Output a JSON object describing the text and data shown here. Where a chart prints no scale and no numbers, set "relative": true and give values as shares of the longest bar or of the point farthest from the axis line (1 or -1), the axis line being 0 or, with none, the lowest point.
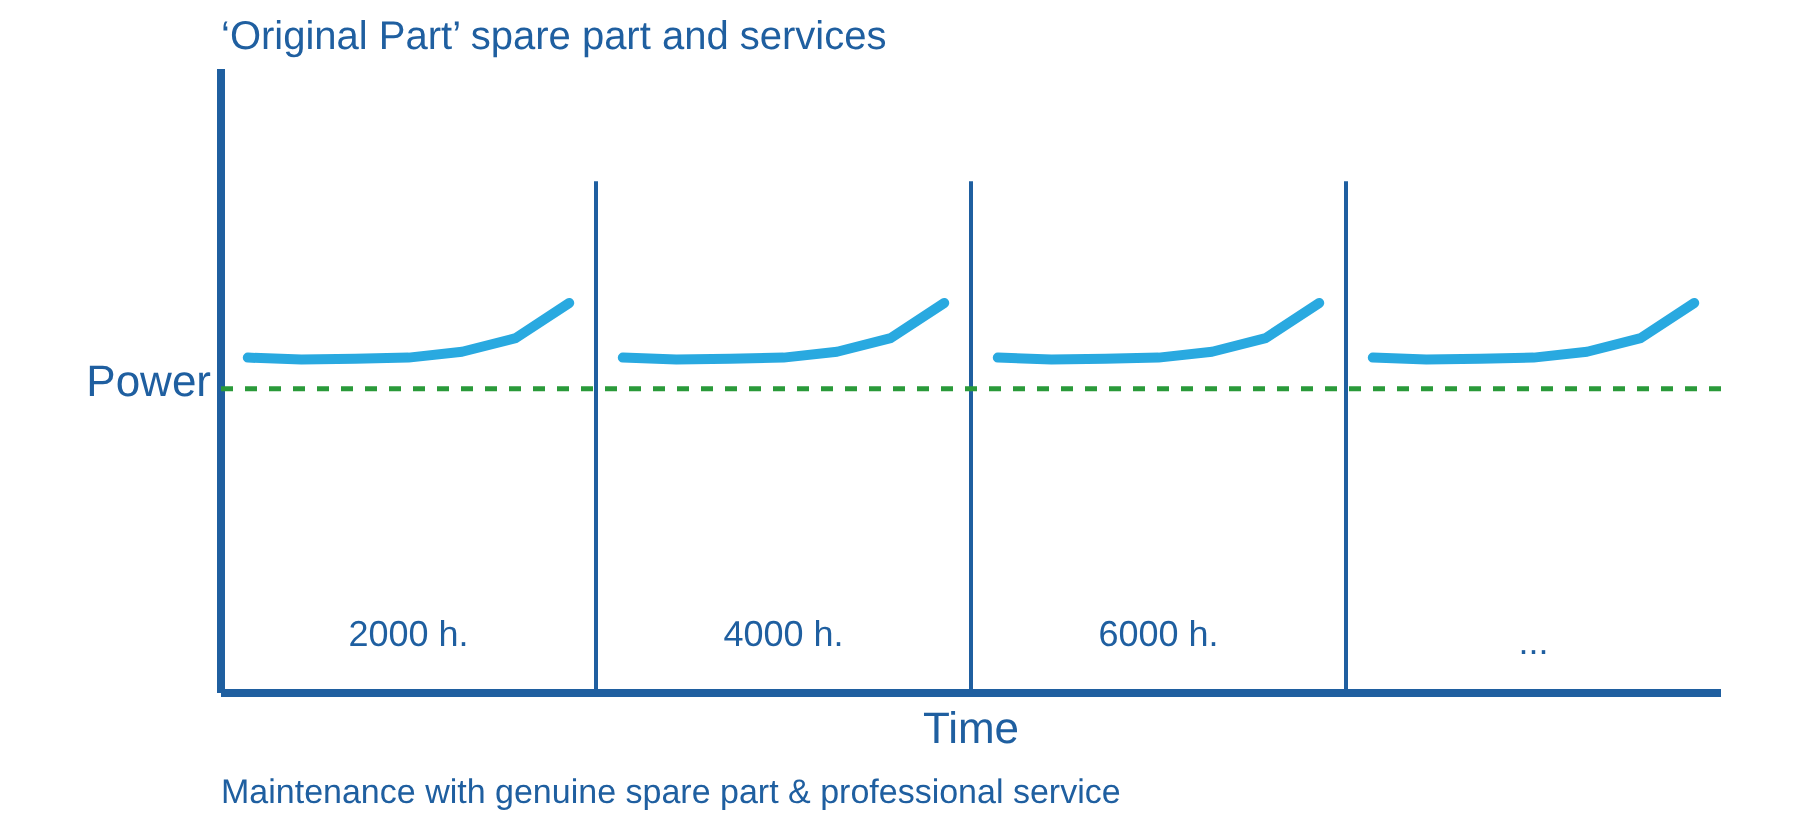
{
  "chart_data": {
    "type": "line",
    "relative": true,
    "title": "‘Original Part’ spare part and services",
    "xlabel": "Time",
    "ylabel": "Power",
    "categories": [
      null,
      null,
      null,
      null,
      null,
      null,
      null,
      null,
      null,
      null,
      null,
      null,
      null,
      null,
      null,
      null,
      null,
      null,
      null,
      null,
      null,
      null,
      null,
      null,
      null,
      null,
      null,
      null
    ],
    "series": [
      {
        "color": "#29a9e0",
        "values": [
          0.86,
          0.855,
          0.857,
          0.86,
          0.875,
          0.91,
          1.0,
          null,
          null,
          null,
          null,
          null,
          null,
          null,
          null,
          null,
          null,
          null,
          null,
          null,
          null,
          null,
          null,
          null,
          null,
          null,
          null,
          null
        ]
      },
      {
        "color": "#29a9e0",
        "values": [
          null,
          null,
          null,
          null,
          null,
          null,
          null,
          0.86,
          0.855,
          0.857,
          0.86,
          0.875,
          0.91,
          1.0,
          null,
          null,
          null,
          null,
          null,
          null,
          null,
          null,
          null,
          null,
          null,
          null,
          null,
          null
        ]
      },
      {
        "color": "#29a9e0",
        "values": [
          null,
          null,
          null,
          null,
          null,
          null,
          null,
          null,
          null,
          null,
          null,
          null,
          null,
          null,
          0.86,
          0.855,
          0.857,
          0.86,
          0.875,
          0.91,
          1.0,
          null,
          null,
          null,
          null,
          null,
          null,
          null
        ]
      },
      {
        "color": "#29a9e0",
        "values": [
          null,
          null,
          null,
          null,
          null,
          null,
          null,
          null,
          null,
          null,
          null,
          null,
          null,
          null,
          null,
          null,
          null,
          null,
          null,
          null,
          null,
          0.86,
          0.855,
          0.857,
          0.86,
          0.875,
          0.91,
          1.0
        ]
      }
    ],
    "ref_lines": [
      {
        "axis": "y",
        "value": 0.78,
        "color": "#2a9a3a",
        "line_style": "dashed"
      }
    ],
    "annotations": [
      "2000 h.",
      "4000 h.",
      "6000 h.",
      "...",
      "Maintenance with genuine spare part & professional service"
    ]
  }
}
